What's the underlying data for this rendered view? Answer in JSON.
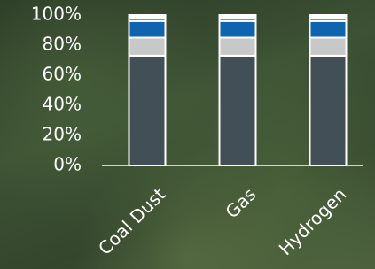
{
  "chart_data": {
    "type": "stacked_bar",
    "categories": [
      "Coal Dust",
      "Gas",
      "Hydrogen"
    ],
    "series": [
      {
        "color": "#434f56",
        "values": [
          73,
          73,
          73
        ]
      },
      {
        "color": "#c8c8c8",
        "values": [
          12,
          12,
          12
        ]
      },
      {
        "color": "#0f64b0",
        "values": [
          11,
          11,
          11
        ]
      },
      {
        "color": "#1aa05a",
        "values": [
          2,
          2,
          2
        ]
      },
      {
        "color": "#ffffff",
        "values": [
          2,
          2,
          2
        ]
      }
    ],
    "ylim": [
      0,
      100
    ],
    "yticks": [
      {
        "value": 0,
        "label": "0%"
      },
      {
        "value": 20,
        "label": "20%"
      },
      {
        "value": 40,
        "label": "40%"
      },
      {
        "value": 60,
        "label": "60%"
      },
      {
        "value": 80,
        "label": "80%"
      },
      {
        "value": 100,
        "label": "100%"
      }
    ]
  }
}
